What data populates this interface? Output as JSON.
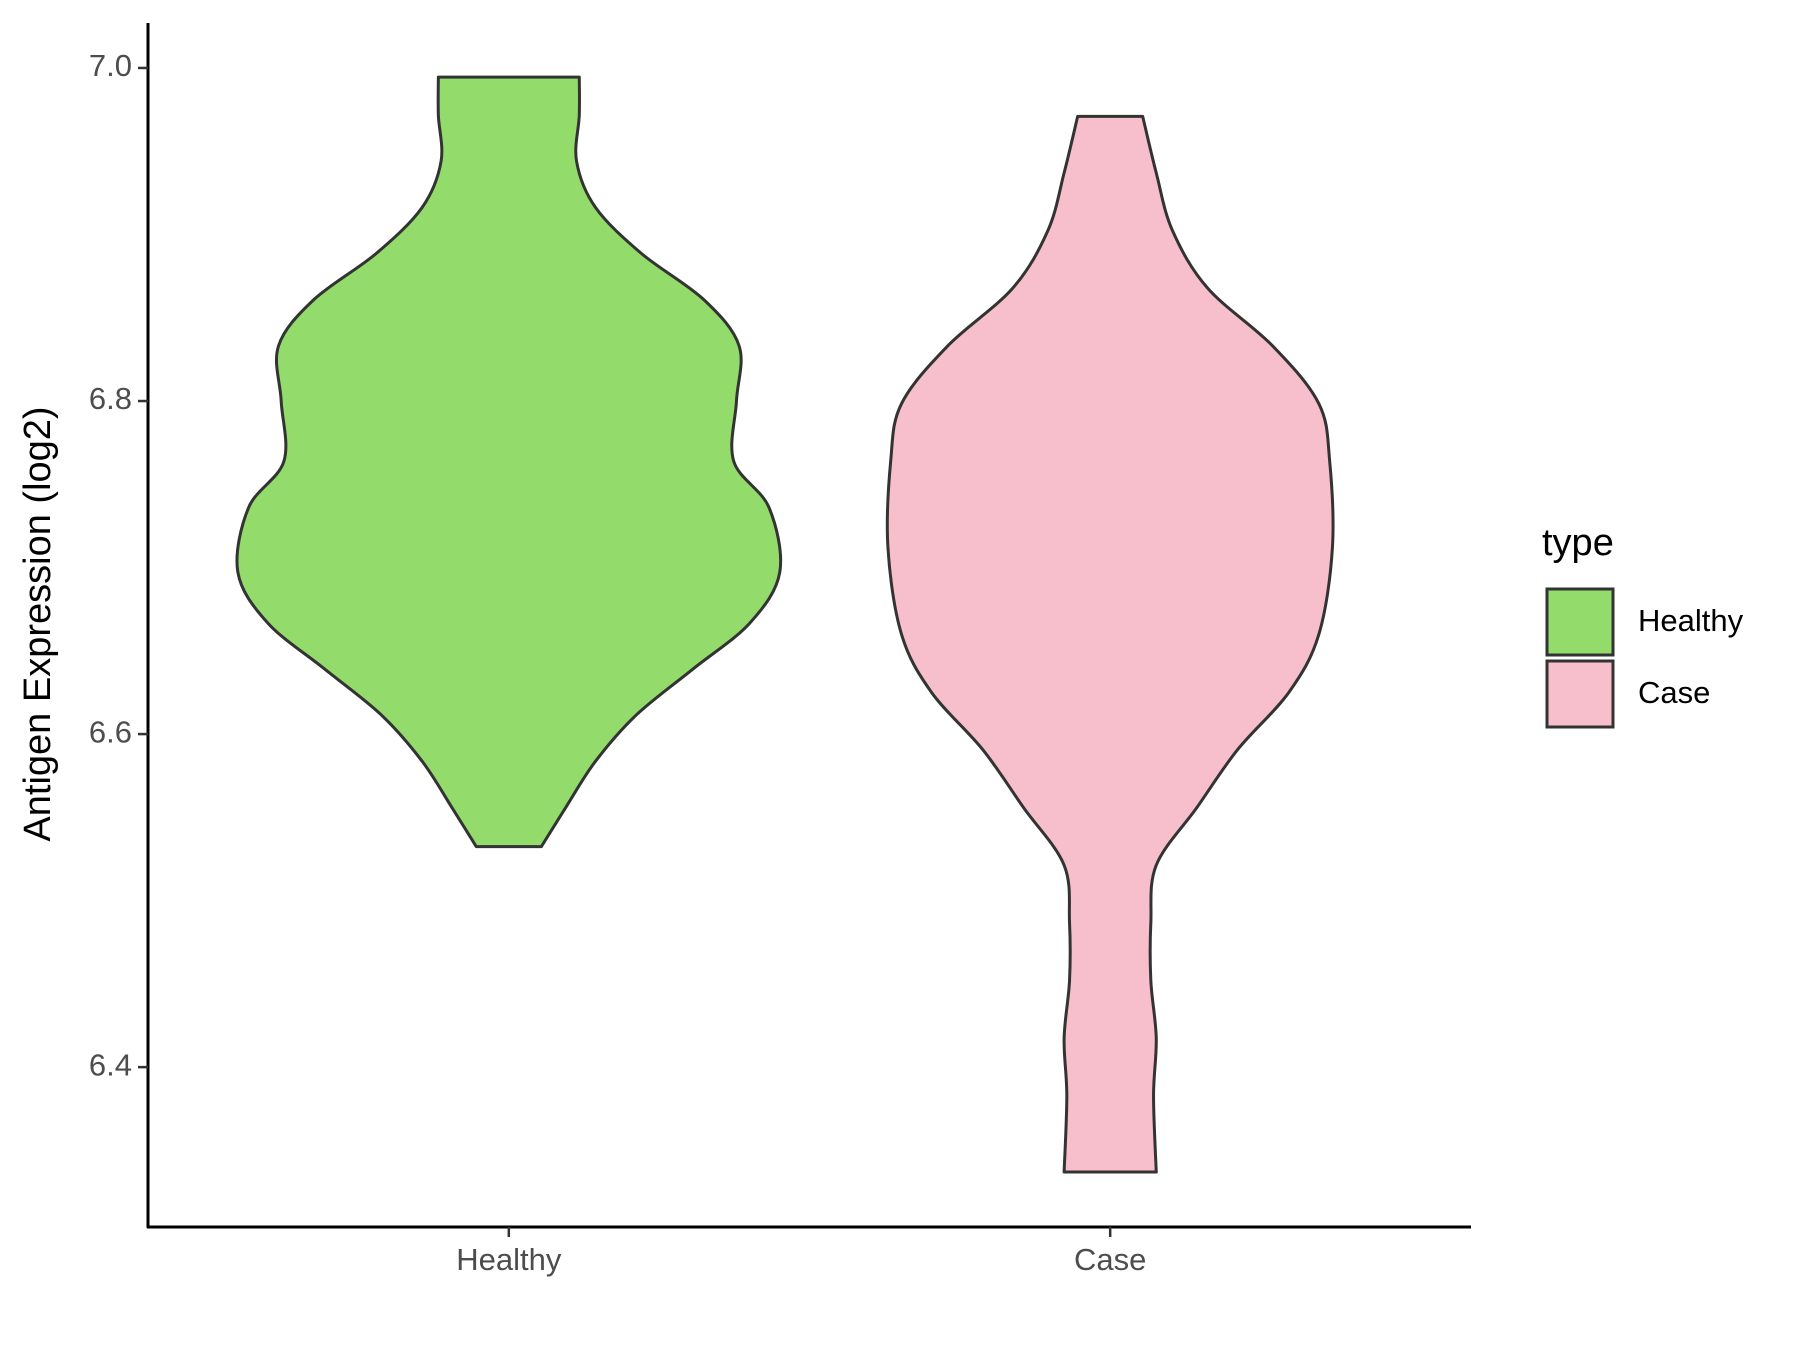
{
  "chart_data": {
    "type": "violin",
    "y_label": "Antigen Expression (log2)",
    "legend_title": "type",
    "categories": [
      "Healthy",
      "Case"
    ],
    "ylim": [
      6.304,
      7.027
    ],
    "yticks": [
      {
        "value": 6.4,
        "label": "6.4"
      },
      {
        "value": 6.6,
        "label": "6.6"
      },
      {
        "value": 6.8,
        "label": "6.8"
      },
      {
        "value": 7.0,
        "label": "7.0"
      }
    ],
    "series": [
      {
        "name": "Healthy",
        "color": "#93dc6b",
        "y": [
          6.9945,
          6.9716,
          6.9439,
          6.9162,
          6.8885,
          6.8608,
          6.833,
          6.8,
          6.7638,
          6.7361,
          6.6973,
          6.6668,
          6.6391,
          6.6114,
          6.5837,
          6.5559,
          6.5324
        ],
        "widths": [
          0.26,
          0.26,
          0.25,
          0.32,
          0.49,
          0.72,
          0.85,
          0.84,
          0.83,
          0.96,
          1.0,
          0.89,
          0.68,
          0.47,
          0.32,
          0.21,
          0.12
        ]
      },
      {
        "name": "Case",
        "color": "#f7bfcb",
        "y": [
          6.9709,
          6.937,
          6.9023,
          6.8677,
          6.833,
          6.7984,
          6.7638,
          6.7118,
          6.6599,
          6.6252,
          6.5906,
          6.5559,
          6.5213,
          6.4867,
          6.452,
          6.4174,
          6.3827,
          6.337
        ],
        "widths": [
          0.12,
          0.17,
          0.23,
          0.36,
          0.6,
          0.77,
          0.81,
          0.82,
          0.77,
          0.66,
          0.47,
          0.32,
          0.17,
          0.15,
          0.15,
          0.17,
          0.16,
          0.17
        ]
      }
    ]
  }
}
